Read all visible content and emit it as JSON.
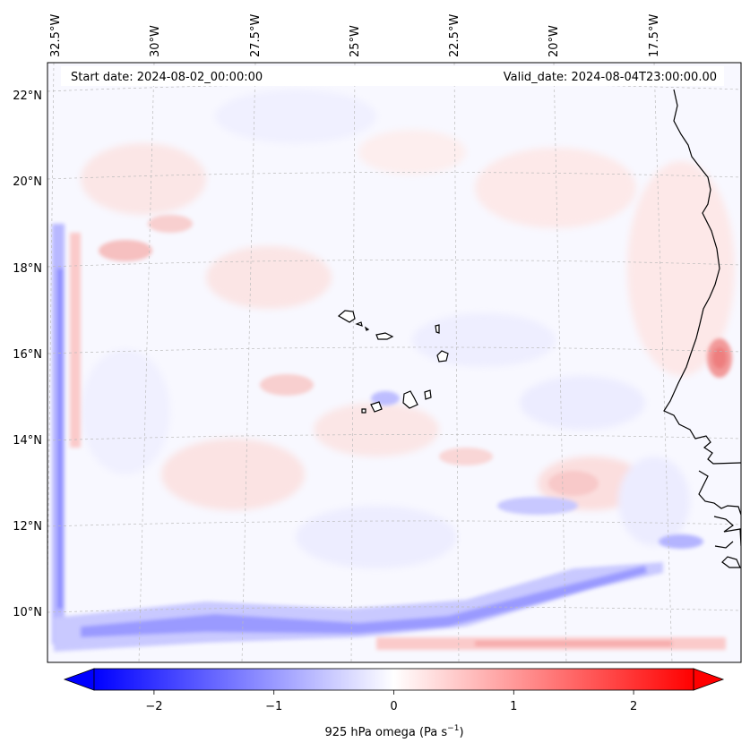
{
  "map": {
    "start_date": "Start date: 2024-08-02_00:00:00",
    "valid_date": "Valid_date: 2024-08-04T23:00:00.00",
    "lon_labels": [
      "32.5°W",
      "30°W",
      "27.5°W",
      "25°W",
      "22.5°W",
      "20°W",
      "17.5°W"
    ],
    "lat_labels": [
      "22°N",
      "20°N",
      "18°N",
      "16°N",
      "14°N",
      "12°N",
      "10°N"
    ],
    "field": "925 hPa omega",
    "region": {
      "lon_min": -33.2,
      "lon_max": -15.3,
      "lat_min": 8.9,
      "lat_max": 22.8
    },
    "grid_lines": true
  },
  "colorbar": {
    "label_main": "925 hPa omega (Pa s",
    "label_exp": "−1",
    "label_close": ")",
    "ticks": [
      "−2",
      "−1",
      "0",
      "1",
      "2"
    ],
    "tick_values": [
      -2,
      -1,
      0,
      1,
      2
    ],
    "range": [
      -2.5,
      2.5
    ],
    "extend": "both",
    "color_low": "#0000ff",
    "color_mid": "#ffffff",
    "color_high": "#ff0000"
  }
}
